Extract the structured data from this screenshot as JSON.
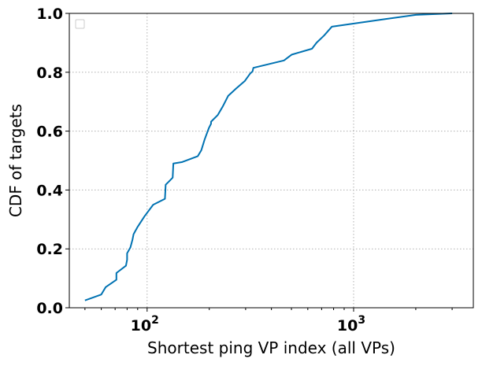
{
  "chart_data": {
    "type": "line",
    "xlabel": "Shortest ping VP index (all VPs)",
    "ylabel": "CDF of targets",
    "xscale": "log",
    "xlim": [
      42,
      3800
    ],
    "ylim": [
      0,
      1
    ],
    "grid": true,
    "legend": "top-left (empty)",
    "x_ticks": [
      {
        "value": 100,
        "base": "10",
        "exp": "2"
      },
      {
        "value": 1000,
        "base": "10",
        "exp": "3"
      }
    ],
    "y_ticks": [
      {
        "value": 0.0,
        "label": "0.0"
      },
      {
        "value": 0.2,
        "label": "0.2"
      },
      {
        "value": 0.4,
        "label": "0.4"
      },
      {
        "value": 0.6,
        "label": "0.6"
      },
      {
        "value": 0.8,
        "label": "0.8"
      },
      {
        "value": 1.0,
        "label": "1.0"
      }
    ],
    "series": [
      {
        "color": "#0072b2",
        "x": [
          50,
          60,
          63,
          71,
          71,
          79,
          80,
          80,
          83,
          85,
          86,
          90,
          97,
          107,
          122,
          123,
          128,
          133,
          134,
          148,
          176,
          183,
          190,
          199,
          204,
          204,
          220,
          233,
          247,
          270,
          297,
          315,
          324,
          327,
          460,
          502,
          629,
          661,
          720,
          785,
          1400,
          2000,
          3000
        ],
        "y": [
          0.025,
          0.045,
          0.07,
          0.095,
          0.118,
          0.143,
          0.163,
          0.185,
          0.205,
          0.232,
          0.25,
          0.275,
          0.31,
          0.35,
          0.37,
          0.418,
          0.43,
          0.442,
          0.49,
          0.495,
          0.515,
          0.535,
          0.572,
          0.61,
          0.625,
          0.632,
          0.655,
          0.685,
          0.72,
          0.745,
          0.77,
          0.795,
          0.803,
          0.815,
          0.84,
          0.86,
          0.88,
          0.9,
          0.925,
          0.955,
          0.98,
          0.995,
          1.0
        ]
      }
    ]
  }
}
